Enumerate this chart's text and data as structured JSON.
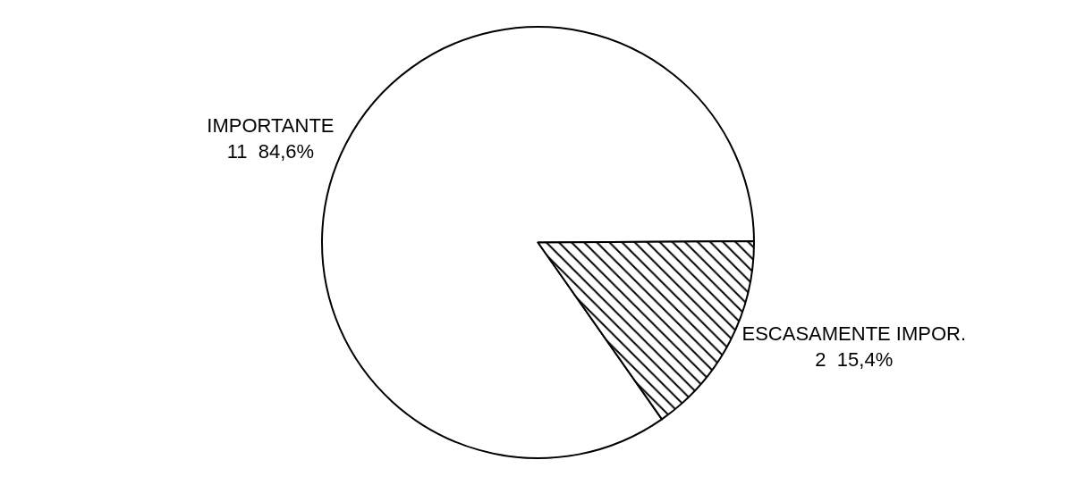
{
  "chart_data": {
    "type": "pie",
    "categories": [
      "IMPORTANTE",
      "ESCASAMENTE IMPOR."
    ],
    "values": [
      11,
      2
    ],
    "value_labels": [
      "11  84,6%",
      "2  15,4%"
    ],
    "colors": [
      "#ffffff",
      "#000000"
    ],
    "legend": false
  }
}
